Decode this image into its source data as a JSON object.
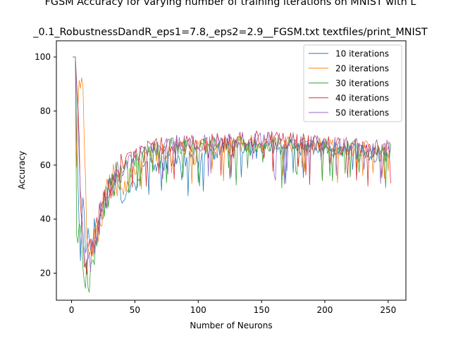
{
  "chart_data": {
    "type": "line",
    "title_line1": "FGSM Accuracy for varying number of training iterations on MNIST with L",
    "title_line2": "_0.1_RobustnessDandR_eps1=7.8,_eps2=2.9__FGSM.txt textfiles/print_MNIST",
    "xlabel": "Number of Neurons",
    "ylabel": "Accuracy",
    "xlim": [
      -12,
      264
    ],
    "ylim": [
      10,
      106
    ],
    "xticks": [
      0,
      50,
      100,
      150,
      200,
      250
    ],
    "yticks": [
      20,
      40,
      60,
      80,
      100
    ],
    "grid": false,
    "legend_position": "top-right",
    "x_start": 1,
    "x_end": 252,
    "series": [
      {
        "name": "10 iterations",
        "color": "#1f77b4",
        "anchors": [
          [
            1,
            100
          ],
          [
            3,
            100
          ],
          [
            5,
            50
          ],
          [
            7,
            27
          ],
          [
            9,
            50
          ],
          [
            11,
            31
          ],
          [
            13,
            36
          ],
          [
            15,
            30
          ],
          [
            17,
            37
          ],
          [
            20,
            33
          ],
          [
            25,
            45
          ],
          [
            30,
            53
          ],
          [
            35,
            55
          ],
          [
            40,
            48
          ],
          [
            45,
            53
          ],
          [
            50,
            52
          ],
          [
            55,
            58
          ],
          [
            60,
            61
          ],
          [
            70,
            60
          ],
          [
            80,
            62
          ],
          [
            90,
            62
          ],
          [
            100,
            64
          ],
          [
            120,
            66
          ],
          [
            150,
            67
          ],
          [
            200,
            66
          ],
          [
            252,
            64
          ]
        ]
      },
      {
        "name": "20 iterations",
        "color": "#ff7f0e",
        "anchors": [
          [
            1,
            100
          ],
          [
            3,
            100
          ],
          [
            4,
            62
          ],
          [
            6,
            90
          ],
          [
            8,
            98
          ],
          [
            10,
            72
          ],
          [
            12,
            33
          ],
          [
            15,
            27
          ],
          [
            18,
            31
          ],
          [
            22,
            38
          ],
          [
            26,
            47
          ],
          [
            30,
            54
          ],
          [
            35,
            55
          ],
          [
            40,
            50
          ],
          [
            45,
            55
          ],
          [
            50,
            59
          ],
          [
            60,
            63
          ],
          [
            70,
            65
          ],
          [
            80,
            66
          ],
          [
            100,
            67
          ],
          [
            150,
            68
          ],
          [
            200,
            67
          ],
          [
            252,
            66
          ]
        ]
      },
      {
        "name": "30 iterations",
        "color": "#2ca02c",
        "anchors": [
          [
            1,
            100
          ],
          [
            3,
            100
          ],
          [
            4,
            36
          ],
          [
            6,
            35
          ],
          [
            8,
            33
          ],
          [
            10,
            14
          ],
          [
            12,
            20
          ],
          [
            14,
            17
          ],
          [
            17,
            27
          ],
          [
            20,
            33
          ],
          [
            25,
            43
          ],
          [
            30,
            52
          ],
          [
            40,
            58
          ],
          [
            50,
            62
          ],
          [
            60,
            65
          ],
          [
            70,
            66
          ],
          [
            80,
            67
          ],
          [
            100,
            67
          ],
          [
            150,
            68
          ],
          [
            200,
            67
          ],
          [
            252,
            65
          ]
        ]
      },
      {
        "name": "40 iterations",
        "color": "#d62728",
        "anchors": [
          [
            1,
            100
          ],
          [
            3,
            100
          ],
          [
            5,
            85
          ],
          [
            7,
            45
          ],
          [
            9,
            30
          ],
          [
            11,
            20
          ],
          [
            14,
            26
          ],
          [
            17,
            32
          ],
          [
            20,
            38
          ],
          [
            25,
            45
          ],
          [
            30,
            52
          ],
          [
            40,
            60
          ],
          [
            50,
            64
          ],
          [
            60,
            66
          ],
          [
            70,
            67
          ],
          [
            80,
            68
          ],
          [
            100,
            68
          ],
          [
            150,
            70
          ],
          [
            200,
            68
          ],
          [
            252,
            65
          ]
        ]
      },
      {
        "name": "50 iterations",
        "color": "#9467bd",
        "anchors": [
          [
            1,
            100
          ],
          [
            3,
            100
          ],
          [
            5,
            80
          ],
          [
            8,
            40
          ],
          [
            10,
            25
          ],
          [
            13,
            22
          ],
          [
            16,
            28
          ],
          [
            20,
            35
          ],
          [
            25,
            45
          ],
          [
            30,
            52
          ],
          [
            40,
            59
          ],
          [
            50,
            64
          ],
          [
            60,
            66
          ],
          [
            70,
            67
          ],
          [
            80,
            68
          ],
          [
            100,
            68
          ],
          [
            150,
            70
          ],
          [
            200,
            68
          ],
          [
            252,
            66
          ]
        ]
      }
    ]
  }
}
